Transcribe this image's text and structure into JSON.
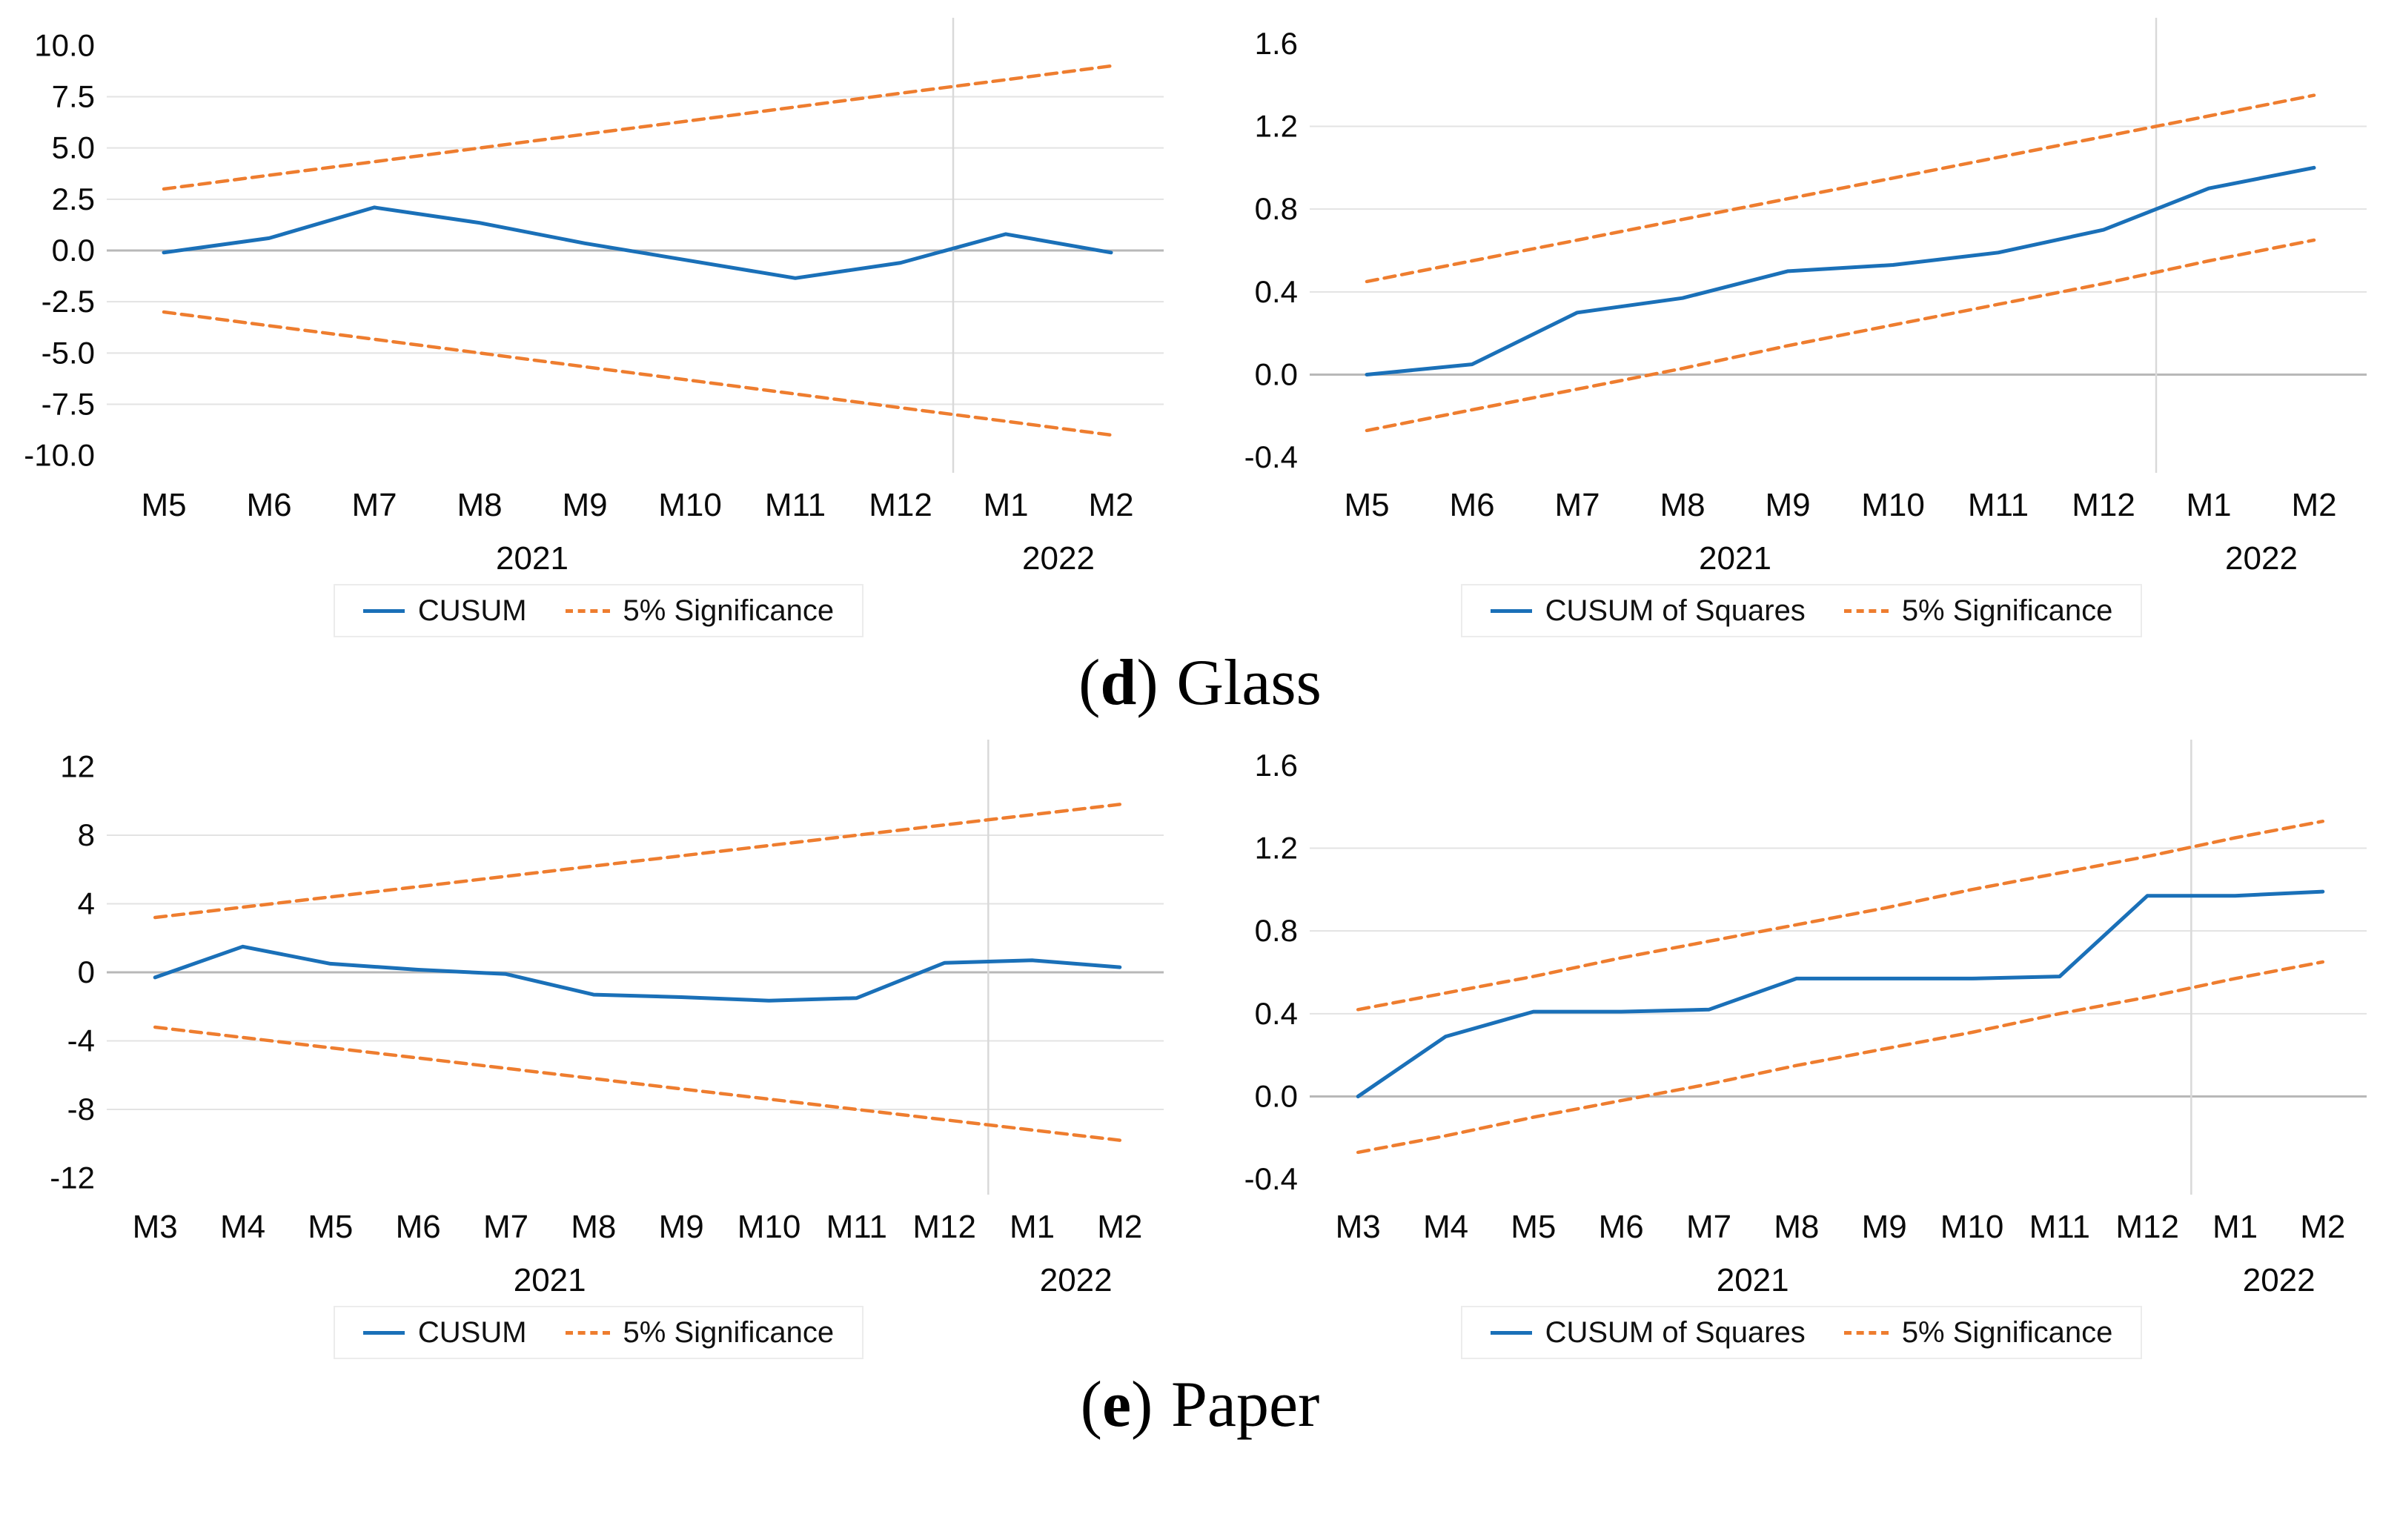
{
  "colors": {
    "cusum_blue": "#1a70b8",
    "significance_orange": "#ee7d2f",
    "gridline": "#e3e3e3",
    "zero_line": "#b8b8b8",
    "year_divider": "#d9d9d9",
    "legend_border": "#ececec",
    "text": "#0a0a0a"
  },
  "captions": {
    "d": {
      "open": "(",
      "letter": "d",
      "close": ")",
      "label": "Glass"
    },
    "e": {
      "open": "(",
      "letter": "e",
      "close": ")",
      "label": "Paper"
    }
  },
  "chart_data": [
    {
      "type": "line",
      "name": "glass-cusum",
      "categories": [
        "M5",
        "M6",
        "M7",
        "M8",
        "M9",
        "M10",
        "M11",
        "M12",
        "M1",
        "M2"
      ],
      "year_labels": [
        {
          "label": "2021",
          "span": 8
        },
        {
          "label": "2022",
          "span": 2
        }
      ],
      "y_tick_labels": [
        "10.0",
        "7.5",
        "5.0",
        "2.5",
        "0.0",
        "-2.5",
        "-5.0",
        "-7.5",
        "-10.0"
      ],
      "y_tick_values": [
        10,
        7.5,
        5,
        2.5,
        0,
        -2.5,
        -5,
        -7.5,
        -10
      ],
      "ylim": [
        -10.7,
        10.7
      ],
      "grid": true,
      "legend_position": "bottom",
      "series": [
        {
          "name": "CUSUM",
          "role": "main",
          "dashed": false,
          "in_legend": true,
          "values": [
            -0.1,
            0.6,
            2.1,
            1.35,
            0.35,
            -0.5,
            -1.35,
            -0.6,
            0.8,
            -0.1
          ]
        },
        {
          "name": "5% Significance",
          "role": "upper-bound",
          "dashed": true,
          "in_legend": true,
          "values": [
            3.0,
            3.67,
            4.33,
            5.0,
            5.67,
            6.33,
            7.0,
            7.67,
            8.33,
            9.0
          ]
        },
        {
          "name": "5% Significance",
          "role": "lower-bound",
          "dashed": true,
          "in_legend": false,
          "values": [
            -3.0,
            -3.67,
            -4.33,
            -5.0,
            -5.67,
            -6.33,
            -7.0,
            -7.67,
            -8.33,
            -9.0
          ]
        }
      ]
    },
    {
      "type": "line",
      "name": "glass-cusum-of-squares",
      "categories": [
        "M5",
        "M6",
        "M7",
        "M8",
        "M9",
        "M10",
        "M11",
        "M12",
        "M1",
        "M2"
      ],
      "year_labels": [
        {
          "label": "2021",
          "span": 8
        },
        {
          "label": "2022",
          "span": 2
        }
      ],
      "y_tick_labels": [
        "1.6",
        "1.2",
        "0.8",
        "0.4",
        "0.0",
        "-0.4"
      ],
      "y_tick_values": [
        1.6,
        1.2,
        0.8,
        0.4,
        0,
        -0.4
      ],
      "ylim": [
        -0.46,
        1.66
      ],
      "grid": true,
      "legend_position": "bottom",
      "series": [
        {
          "name": "CUSUM of Squares",
          "role": "main",
          "dashed": false,
          "in_legend": true,
          "values": [
            0.0,
            0.05,
            0.3,
            0.37,
            0.5,
            0.53,
            0.59,
            0.7,
            0.9,
            1.0
          ]
        },
        {
          "name": "5% Significance",
          "role": "upper-bound",
          "dashed": true,
          "in_legend": true,
          "values": [
            0.45,
            0.55,
            0.65,
            0.75,
            0.85,
            0.95,
            1.05,
            1.15,
            1.25,
            1.35
          ]
        },
        {
          "name": "5% Significance",
          "role": "lower-bound",
          "dashed": true,
          "in_legend": false,
          "values": [
            -0.27,
            -0.17,
            -0.07,
            0.03,
            0.14,
            0.24,
            0.34,
            0.44,
            0.55,
            0.65
          ]
        }
      ]
    },
    {
      "type": "line",
      "name": "paper-cusum",
      "categories": [
        "M3",
        "M4",
        "M5",
        "M6",
        "M7",
        "M8",
        "M9",
        "M10",
        "M11",
        "M12",
        "M1",
        "M2"
      ],
      "year_labels": [
        {
          "label": "2021",
          "span": 10
        },
        {
          "label": "2022",
          "span": 2
        }
      ],
      "y_tick_labels": [
        "12",
        "8",
        "4",
        "0",
        "-4",
        "-8",
        "-12"
      ],
      "y_tick_values": [
        12,
        8,
        4,
        0,
        -4,
        -8,
        -12
      ],
      "ylim": [
        -12.8,
        12.8
      ],
      "grid": true,
      "legend_position": "bottom",
      "series": [
        {
          "name": "CUSUM",
          "role": "main",
          "dashed": false,
          "in_legend": true,
          "values": [
            -0.3,
            1.5,
            0.5,
            0.15,
            -0.1,
            -1.3,
            -1.45,
            -1.65,
            -1.5,
            0.55,
            0.7,
            0.3
          ]
        },
        {
          "name": "5% Significance",
          "role": "upper-bound",
          "dashed": true,
          "in_legend": true,
          "values": [
            3.2,
            3.8,
            4.4,
            5.0,
            5.6,
            6.2,
            6.8,
            7.4,
            8.0,
            8.6,
            9.2,
            9.8
          ]
        },
        {
          "name": "5% Significance",
          "role": "lower-bound",
          "dashed": true,
          "in_legend": false,
          "values": [
            -3.2,
            -3.8,
            -4.4,
            -5.0,
            -5.6,
            -6.2,
            -6.8,
            -7.4,
            -8.0,
            -8.6,
            -9.2,
            -9.8
          ]
        }
      ]
    },
    {
      "type": "line",
      "name": "paper-cusum-of-squares",
      "categories": [
        "M3",
        "M4",
        "M5",
        "M6",
        "M7",
        "M8",
        "M9",
        "M10",
        "M11",
        "M12",
        "M1",
        "M2"
      ],
      "year_labels": [
        {
          "label": "2021",
          "span": 10
        },
        {
          "label": "2022",
          "span": 2
        }
      ],
      "y_tick_labels": [
        "1.6",
        "1.2",
        "0.8",
        "0.4",
        "0.0",
        "-0.4"
      ],
      "y_tick_values": [
        1.6,
        1.2,
        0.8,
        0.4,
        0,
        -0.4
      ],
      "ylim": [
        -0.46,
        1.66
      ],
      "grid": true,
      "legend_position": "bottom",
      "series": [
        {
          "name": "CUSUM of Squares",
          "role": "main",
          "dashed": false,
          "in_legend": true,
          "values": [
            0.0,
            0.29,
            0.41,
            0.41,
            0.42,
            0.57,
            0.57,
            0.57,
            0.58,
            0.97,
            0.97,
            0.99
          ]
        },
        {
          "name": "5% Significance",
          "role": "upper-bound",
          "dashed": true,
          "in_legend": true,
          "values": [
            0.42,
            0.5,
            0.58,
            0.67,
            0.75,
            0.83,
            0.91,
            1.0,
            1.08,
            1.16,
            1.25,
            1.33
          ]
        },
        {
          "name": "5% Significance",
          "role": "lower-bound",
          "dashed": true,
          "in_legend": false,
          "values": [
            -0.27,
            -0.19,
            -0.1,
            -0.02,
            0.06,
            0.15,
            0.23,
            0.31,
            0.4,
            0.48,
            0.57,
            0.65
          ]
        }
      ]
    }
  ]
}
